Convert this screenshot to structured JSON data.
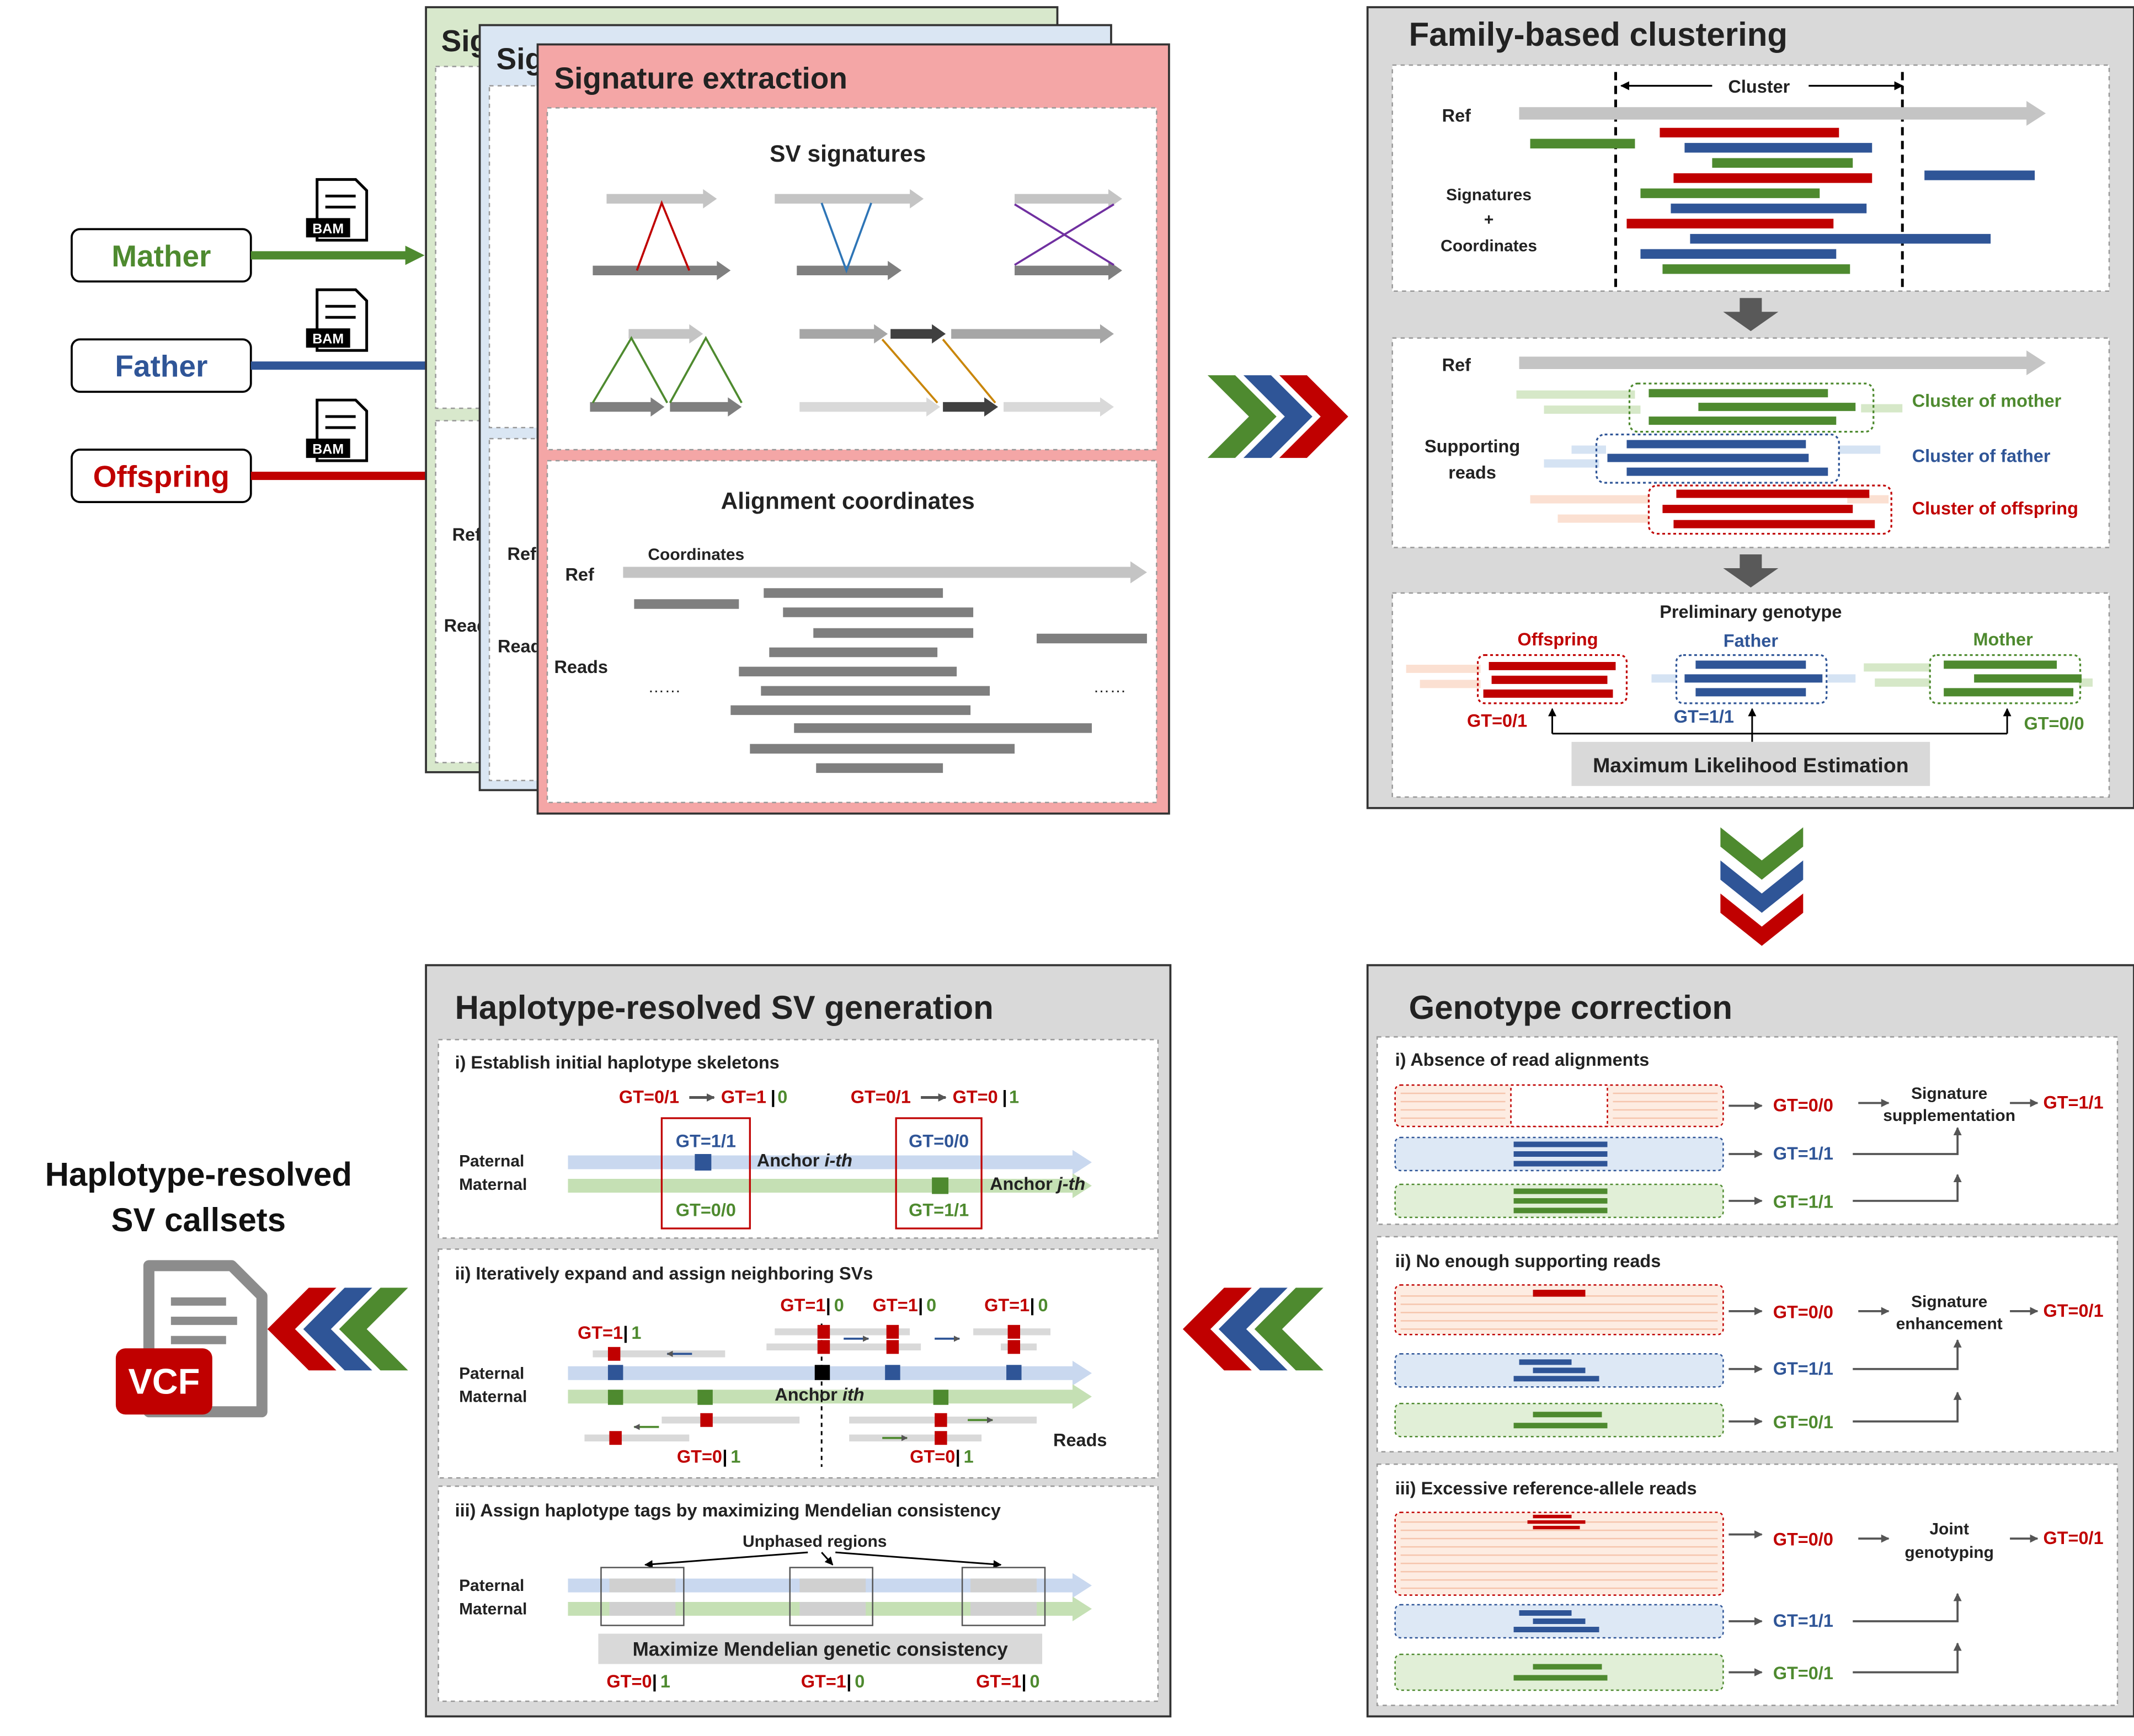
{
  "colors": {
    "mother": "#4e8a2f",
    "father": "#2f5597",
    "offspring": "#c00000",
    "ref_gray": "#c4c4c4",
    "read_gray": "#7f7f7f",
    "panel_header": "#bfbfbf",
    "signature_panel": "#f4a6a6"
  },
  "inputs": {
    "bam_label": "BAM",
    "mother": "Mather",
    "father": "Father",
    "offspring": "Offspring"
  },
  "back_panels": {
    "green_title": "Sig",
    "blue_title": "Sig",
    "ref": "Ref",
    "reads": "Read"
  },
  "signature_extraction": {
    "title": "Signature extraction",
    "sv_signatures": "SV signatures",
    "alignment_coordinates": "Alignment coordinates",
    "coordinates": "Coordinates",
    "ref": "Ref",
    "reads": "Reads",
    "ellipsis": "……"
  },
  "family_clustering": {
    "title": "Family-based clustering",
    "cluster": "Cluster",
    "ref": "Ref",
    "signatures": "Signatures",
    "plus": "+",
    "coordinates": "Coordinates",
    "supporting": "Supporting",
    "reads": "reads",
    "cluster_mother": "Cluster of mother",
    "cluster_father": "Cluster of father",
    "cluster_offspring": "Cluster of offspring",
    "preliminary_genotype": "Preliminary genotype",
    "offspring": "Offspring",
    "father": "Father",
    "mother": "Mother",
    "gt_offspring": "GT=0/1",
    "gt_father": "GT=1/1",
    "gt_mother": "GT=0/0",
    "mle": "Maximum Likelihood Estimation"
  },
  "genotype_correction": {
    "title": "Genotype correction",
    "sections": [
      {
        "heading": "i) Absence of read alignments",
        "gt_offspring": "GT=0/0",
        "gt_father": "GT=1/1",
        "gt_mother": "GT=1/1",
        "method_line1": "Signature",
        "method_line2": "supplementation",
        "result": "GT=1/1"
      },
      {
        "heading": "ii) No enough supporting reads",
        "gt_offspring": "GT=0/0",
        "gt_father": "GT=1/1",
        "gt_mother": "GT=0/1",
        "method_line1": "Signature",
        "method_line2": "enhancement",
        "result": "GT=0/1"
      },
      {
        "heading": "iii) Excessive reference-allele reads",
        "gt_offspring": "GT=0/0",
        "gt_father": "GT=1/1",
        "gt_mother": "GT=0/1",
        "method_line1": "Joint",
        "method_line2": "genotyping",
        "result": "GT=0/1"
      }
    ]
  },
  "haplotype_generation": {
    "title": "Haplotype-resolved SV generation",
    "paternal": "Paternal",
    "maternal": "Maternal",
    "s1": {
      "heading": "i) Establish initial haplotype skeletons",
      "gt_a": "GT=0/1",
      "gt_a_p": "GT=1",
      "gt_a_m": "0",
      "gt_b": "GT=0/1",
      "gt_b_p": "GT=0",
      "gt_b_m": "1",
      "box1_top": "GT=1/1",
      "box1_bottom": "GT=0/0",
      "box2_top": "GT=0/0",
      "box2_bottom": "GT=1/1",
      "anchor_i": "Anchor ",
      "anchor_i_em": "i-th",
      "anchor_j": "Anchor ",
      "anchor_j_em": "j-th"
    },
    "s2": {
      "heading": "ii) Iteratively expand and assign neighboring SVs",
      "gt_p": "GT=1",
      "gt_m": "1",
      "gt2_p": "GT=1",
      "gt2_m": "0",
      "gt3_p": "GT=1",
      "gt3_m": "0",
      "gt4_p": "GT=1",
      "gt4_m": "0",
      "gt5_p": "GT=0",
      "gt5_m": "1",
      "gt6_p": "GT=0",
      "gt6_m": "1",
      "anchor": "Anchor ",
      "anchor_em": "ith",
      "reads": "Reads"
    },
    "s3": {
      "heading": "iii) Assign haplotype tags by maximizing Mendelian consistency",
      "unphased": "Unphased regions",
      "maximize": "Maximize Mendelian genetic consistency",
      "gt1_p": "GT=0",
      "gt1_m": "1",
      "gt2_p": "GT=1",
      "gt2_m": "0",
      "gt3_p": "GT=1",
      "gt3_m": "0"
    }
  },
  "output": {
    "line1": "Haplotype-resolved",
    "line2": "SV callsets",
    "vcf": "VCF"
  }
}
